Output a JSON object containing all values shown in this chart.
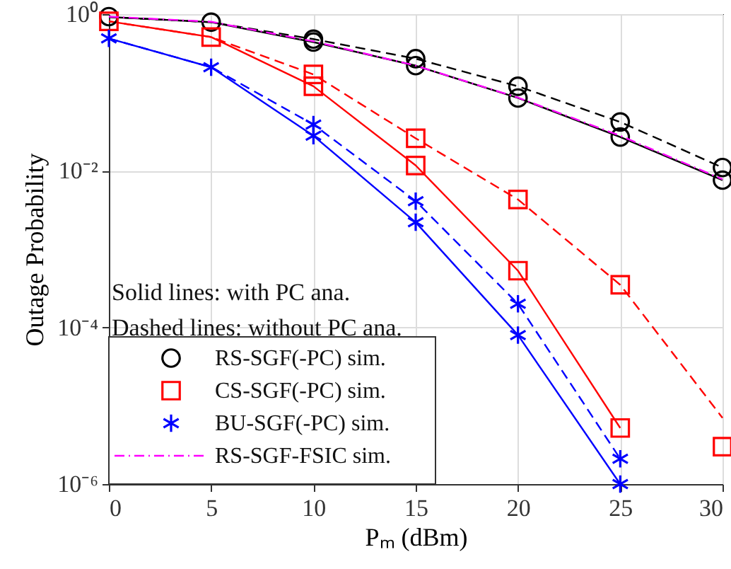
{
  "chart_data": {
    "type": "line",
    "xlabel": "Pₘ (dBm)",
    "ylabel": "Outage Probability",
    "xlim": [
      0,
      30
    ],
    "xticks": [
      0,
      5,
      10,
      15,
      20,
      25,
      30
    ],
    "ylim": [
      1e-06,
      1
    ],
    "yticks": [
      {
        "value": 1e-06,
        "label": "10⁻⁶"
      },
      {
        "value": 0.0001,
        "label": "10⁻⁴"
      },
      {
        "value": 0.01,
        "label": "10⁻²"
      },
      {
        "value": 1,
        "label": "10⁰"
      }
    ],
    "log": true,
    "grid": true,
    "legend": "bottom left",
    "annotations": [
      "Solid lines: with PC ana.",
      "Dashed lines: without PC ana."
    ],
    "x": [
      0,
      5,
      10,
      15,
      20,
      25,
      30
    ],
    "series": [
      {
        "color": "#000000",
        "line_style": "solid",
        "values": [
          0.92,
          0.79,
          0.44,
          0.22,
          0.085,
          0.027,
          0.0076
        ]
      },
      {
        "color": "#000000",
        "line_style": "dashed",
        "values": [
          0.92,
          0.79,
          0.48,
          0.27,
          0.12,
          0.042,
          0.011
        ]
      },
      {
        "color": "#ff0000",
        "line_style": "solid",
        "values": [
          0.81,
          0.51,
          0.12,
          0.0117,
          0.00053,
          5.2e-06,
          null
        ]
      },
      {
        "color": "#ff0000",
        "line_style": "dashed",
        "values": [
          0.81,
          0.51,
          0.17,
          0.026,
          0.0043,
          0.00035,
          7e-06
        ]
      },
      {
        "color": "#0000ff",
        "line_style": "solid",
        "values": [
          0.49,
          0.21,
          0.028,
          0.0022,
          8e-05,
          1e-06,
          null
        ]
      },
      {
        "color": "#0000ff",
        "line_style": "dashed",
        "values": [
          0.49,
          0.21,
          0.039,
          0.0041,
          0.0002,
          2.1e-06,
          null
        ]
      },
      {
        "type": "scatter",
        "name": "RS-SGF(-PC) sim.",
        "color": "#000000",
        "marker": "circle",
        "x": [
          0,
          5,
          10,
          10,
          15,
          15,
          20,
          20,
          25,
          25,
          30,
          30
        ],
        "values": [
          0.93,
          0.79,
          0.44,
          0.48,
          0.22,
          0.27,
          0.085,
          0.12,
          0.027,
          0.042,
          0.0076,
          0.011
        ]
      },
      {
        "type": "scatter",
        "name": "CS-SGF(-PC) sim.",
        "color": "#ff0000",
        "marker": "square",
        "x": [
          0,
          5,
          10,
          10,
          15,
          15,
          20,
          20,
          25,
          25,
          30
        ],
        "values": [
          0.81,
          0.51,
          0.12,
          0.17,
          0.0117,
          0.026,
          0.00053,
          0.0043,
          5.2e-06,
          0.00035,
          3e-06
        ]
      },
      {
        "type": "scatter",
        "name": "BU-SGF(-PC) sim.",
        "color": "#0000ff",
        "marker": "cross",
        "x": [
          0,
          5,
          10,
          10,
          15,
          15,
          20,
          20,
          25,
          25
        ],
        "values": [
          0.49,
          0.21,
          0.028,
          0.039,
          0.0022,
          0.0041,
          8e-05,
          0.0002,
          1e-06,
          2.1e-06
        ]
      },
      {
        "name": "RS-SGF-FSIC sim.",
        "color": "#ff00ff",
        "line_style": "dashdot",
        "values": [
          0.93,
          0.8,
          0.45,
          0.22,
          0.086,
          0.028,
          0.0078
        ]
      }
    ]
  }
}
